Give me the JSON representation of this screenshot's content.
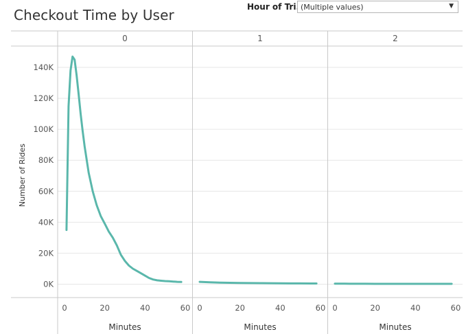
{
  "title": "Checkout Time by User",
  "filter": {
    "label": "Hour of Tri...",
    "value": "(Multiple values)",
    "caret_icon": "caret-down-icon"
  },
  "colors": {
    "line": "#5ab7ab",
    "grid": "#e6e6e6",
    "divider": "#c8c8c8",
    "text": "#555555"
  },
  "chart_data": {
    "type": "line",
    "ylabel": "Number of Rides",
    "xlabel": "Minutes",
    "ylim": [
      0,
      150000
    ],
    "xlim": [
      0,
      60
    ],
    "y_ticks": [
      0,
      20000,
      40000,
      60000,
      80000,
      100000,
      120000,
      140000
    ],
    "y_tick_labels": [
      "0K",
      "20K",
      "40K",
      "60K",
      "80K",
      "100K",
      "120K",
      "140K"
    ],
    "x_ticks": [
      0,
      20,
      40,
      60
    ],
    "x_tick_labels": [
      "0",
      "20",
      "40",
      "60"
    ],
    "grid": true,
    "panels": [
      {
        "header": "0",
        "x": [
          1,
          2,
          3,
          4,
          5,
          6,
          7,
          8,
          9,
          10,
          12,
          14,
          16,
          18,
          20,
          22,
          24,
          26,
          28,
          30,
          32,
          34,
          36,
          38,
          40,
          42,
          44,
          46,
          48,
          50,
          52,
          54,
          56,
          58
        ],
        "y": [
          35000,
          115000,
          138000,
          147000,
          145000,
          135000,
          123000,
          110000,
          99000,
          89000,
          72000,
          60000,
          51000,
          44000,
          39000,
          34000,
          30000,
          25000,
          19000,
          15000,
          12000,
          10000,
          8500,
          7000,
          5500,
          4000,
          3000,
          2500,
          2200,
          2000,
          1900,
          1700,
          1500,
          1400
        ]
      },
      {
        "header": "1",
        "x": [
          0,
          5,
          10,
          15,
          20,
          25,
          30,
          35,
          40,
          45,
          50,
          55,
          58
        ],
        "y": [
          1500,
          1200,
          1000,
          900,
          800,
          700,
          650,
          600,
          550,
          500,
          500,
          450,
          450
        ]
      },
      {
        "header": "2",
        "x": [
          0,
          5,
          10,
          15,
          20,
          25,
          30,
          35,
          40,
          45,
          50,
          55,
          58
        ],
        "y": [
          300,
          300,
          250,
          250,
          200,
          200,
          200,
          200,
          200,
          200,
          200,
          200,
          200
        ]
      }
    ]
  }
}
